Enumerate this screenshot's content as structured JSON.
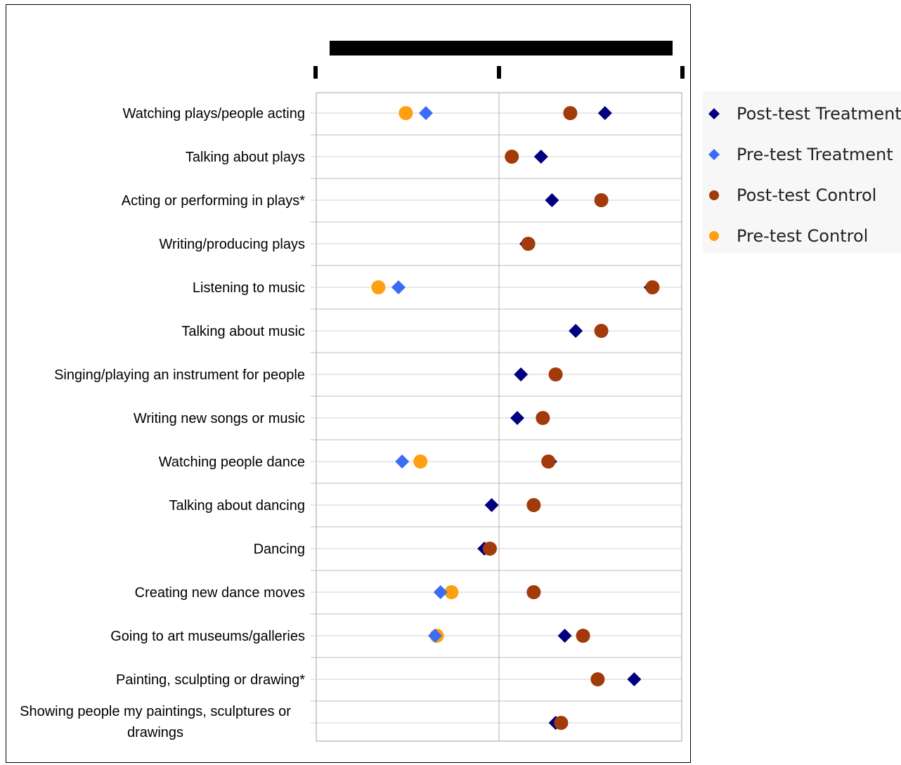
{
  "chart_data": {
    "type": "scatter",
    "title": "",
    "xlim": [
      0,
      2
    ],
    "x_ticks": [
      "",
      "",
      ""
    ],
    "categories": [
      "Watching plays/people acting",
      "Talking about plays",
      "Acting or performing in plays*",
      "Writing/producing plays",
      "Listening to music",
      "Talking about music",
      "Singing/playing an instrument for people",
      "Writing new songs or music",
      "Watching people dance",
      "Talking about dancing",
      "Dancing",
      "Creating new dance moves",
      "Going to art museums/galleries",
      "Painting, sculpting or drawing*",
      "Showing people my paintings, sculptures or drawings"
    ],
    "series": [
      {
        "name": "Post-test Treatment",
        "marker": "diamond",
        "color": "#000080",
        "values": [
          1.58,
          1.23,
          1.29,
          1.15,
          1.83,
          1.42,
          1.12,
          1.1,
          1.28,
          0.96,
          0.92,
          1.19,
          1.36,
          1.74,
          1.31
        ]
      },
      {
        "name": "Pre-test Treatment",
        "marker": "diamond",
        "color": "#3a6cf4",
        "values": [
          0.6,
          null,
          null,
          null,
          0.45,
          null,
          null,
          null,
          0.47,
          null,
          null,
          0.68,
          0.65,
          null,
          null
        ]
      },
      {
        "name": "Post-test Control",
        "marker": "circle",
        "color": "#a23a0a",
        "values": [
          1.39,
          1.07,
          1.56,
          1.16,
          1.84,
          1.56,
          1.31,
          1.24,
          1.27,
          1.19,
          0.95,
          1.19,
          1.46,
          1.54,
          1.34
        ]
      },
      {
        "name": "Pre-test Control",
        "marker": "circle",
        "color": "#ffa010",
        "values": [
          0.49,
          null,
          null,
          null,
          0.34,
          null,
          null,
          null,
          0.57,
          null,
          null,
          0.74,
          0.66,
          null,
          null
        ]
      }
    ],
    "grid": true,
    "legend_position": "right"
  }
}
